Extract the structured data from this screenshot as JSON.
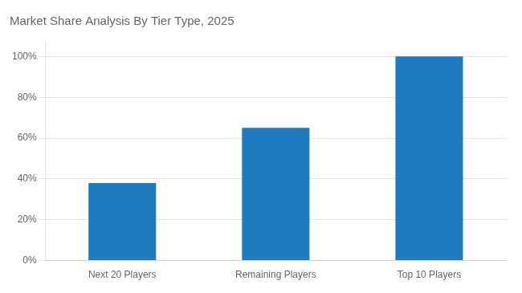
{
  "chart_data": {
    "type": "bar",
    "title": "Market Share Analysis By Tier Type, 2025",
    "categories": [
      "Next 20 Players",
      "Remaining Players",
      "Top 10 Players"
    ],
    "values": [
      38,
      65,
      100
    ],
    "color": "#1F7BC0",
    "ylim": [
      0,
      108
    ],
    "yticks": [
      {
        "value": 0,
        "label": "0%"
      },
      {
        "value": 20,
        "label": "20%"
      },
      {
        "value": 40,
        "label": "40%"
      },
      {
        "value": 60,
        "label": "60%"
      },
      {
        "value": 80,
        "label": "80%"
      },
      {
        "value": 100,
        "label": "100%"
      }
    ],
    "grid": true
  }
}
